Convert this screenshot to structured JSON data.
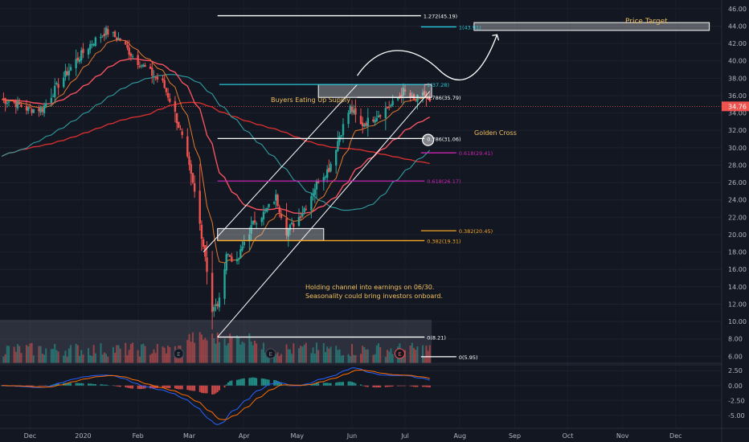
{
  "chart_data": {
    "type": "candlestick",
    "y_ticks": [
      "46.00",
      "44.00",
      "42.00",
      "40.00",
      "38.00",
      "36.00",
      "34.00",
      "32.00",
      "30.00",
      "28.00",
      "26.00",
      "24.00",
      "22.00",
      "20.00",
      "18.00",
      "16.00",
      "14.00",
      "12.00",
      "10.00",
      "8.00",
      "6.00"
    ],
    "ylim": [
      5.2,
      47.0
    ],
    "x_ticks": [
      "Dec",
      "2020",
      "Feb",
      "Mar",
      "Apr",
      "May",
      "Jun",
      "Jul",
      "Aug",
      "Sep",
      "Oct",
      "Nov",
      "Dec"
    ],
    "x_tick_days": [
      -61,
      -31,
      0,
      29,
      60,
      90,
      121,
      151,
      182,
      213,
      243,
      274,
      304
    ],
    "current_price": "34.76",
    "macd_ticks": [
      "2.50",
      "0.00",
      "-2.50",
      "-5.00"
    ],
    "macd_ylim": [
      -6.5,
      3.2
    ],
    "price_keypoints": [
      {
        "d": -78,
        "p": 35.6
      },
      {
        "d": -70,
        "p": 35.2
      },
      {
        "d": -62,
        "p": 34.4
      },
      {
        "d": -54,
        "p": 34.5
      },
      {
        "d": -46,
        "p": 37.0
      },
      {
        "d": -36,
        "p": 39.8
      },
      {
        "d": -26,
        "p": 42.1
      },
      {
        "d": -18,
        "p": 43.4
      },
      {
        "d": -10,
        "p": 42.4
      },
      {
        "d": -2,
        "p": 40.3
      },
      {
        "d": 6,
        "p": 38.8
      },
      {
        "d": 14,
        "p": 37.4
      },
      {
        "d": 20,
        "p": 34.6
      },
      {
        "d": 26,
        "p": 30.4
      },
      {
        "d": 32,
        "p": 24.8
      },
      {
        "d": 38,
        "p": 17.6
      },
      {
        "d": 42,
        "p": 11.2
      },
      {
        "d": 46,
        "p": 12.3
      },
      {
        "d": 50,
        "p": 17.9
      },
      {
        "d": 56,
        "p": 16.7
      },
      {
        "d": 60,
        "p": 19.2
      },
      {
        "d": 66,
        "p": 21.6
      },
      {
        "d": 72,
        "p": 22.6
      },
      {
        "d": 78,
        "p": 24.3
      },
      {
        "d": 84,
        "p": 20.4
      },
      {
        "d": 90,
        "p": 21.7
      },
      {
        "d": 96,
        "p": 23.7
      },
      {
        "d": 102,
        "p": 26.3
      },
      {
        "d": 108,
        "p": 27.6
      },
      {
        "d": 114,
        "p": 31.4
      },
      {
        "d": 120,
        "p": 34.6
      },
      {
        "d": 126,
        "p": 32.6
      },
      {
        "d": 132,
        "p": 33.3
      },
      {
        "d": 138,
        "p": 34.2
      },
      {
        "d": 144,
        "p": 35.0
      },
      {
        "d": 150,
        "p": 36.5
      },
      {
        "d": 156,
        "p": 35.4
      },
      {
        "d": 162,
        "p": 36.1
      },
      {
        "d": 166,
        "p": 34.7
      }
    ],
    "fib_levels": [
      {
        "label": "1.272(45.19)",
        "value": 45.19
      },
      {
        "label": "1(43.91)",
        "value": 43.91
      },
      {
        "label": "1(37.28)",
        "value": 37.28
      },
      {
        "label": "0.786(35.79)",
        "value": 35.79
      },
      {
        "label": "0.786(31.06)",
        "value": 31.06
      },
      {
        "label": "0.618(29.41)",
        "value": 29.41
      },
      {
        "label": "0.618(26.17)",
        "value": 26.17
      },
      {
        "label": "0.382(20.45)",
        "value": 20.45
      },
      {
        "label": "0.382(19.31)",
        "value": 19.31
      },
      {
        "label": "0(8.21)",
        "value": 8.21
      },
      {
        "label": "0(5.95)",
        "value": 5.95
      }
    ],
    "annotations": {
      "price_target": "Price Target",
      "buyers": "Buyers Eating Up Supply",
      "golden_cross": "Golden Cross",
      "holding_line1": "Holding channel into earnings on 06/30.",
      "holding_line2": "Seasonality could bring investors onboard.",
      "earnings_marker": "E"
    },
    "colors": {
      "background": "#131722",
      "up": "#26a69a",
      "down": "#ef5350",
      "ema_fast": "#e37a2c",
      "ema_mid": "#f7525f",
      "sma_long": "#2e9ea0",
      "sma_200": "#d32f2f",
      "accent_text": "#f0c060",
      "fib_teal": "#26c6da",
      "fib_purple": "#c724b1",
      "fib_orange": "#f5a623"
    }
  }
}
